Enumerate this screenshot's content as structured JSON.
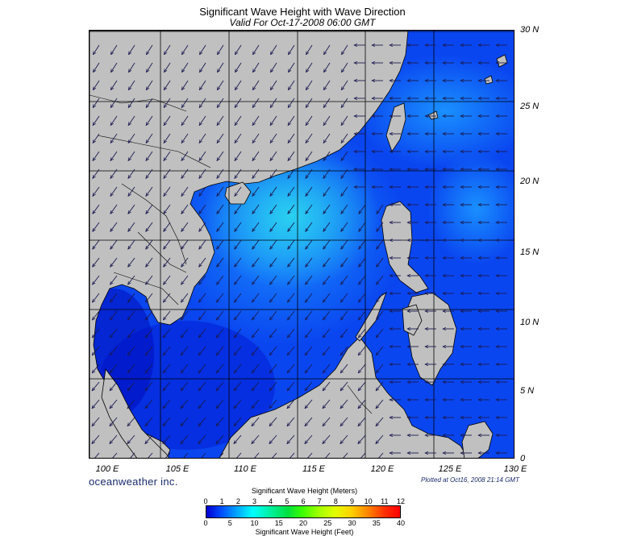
{
  "header": {
    "title": "Significant Wave Height with Wave Direction",
    "subtitle": "Valid For Oct-17-2008 06:00 GMT"
  },
  "map": {
    "lat_labels": [
      "30 N",
      "25 N",
      "20 N",
      "15 N",
      "10 N",
      "5 N",
      "0"
    ],
    "lon_labels": [
      "100 E",
      "105 E",
      "110 E",
      "115 E",
      "120 E",
      "125 E",
      "130 E"
    ],
    "colors": {
      "land": "#c0c0c0",
      "sea_low": "#0032ff",
      "sea_mid": "#0a6aff",
      "sea_high": "#1ab8f0"
    }
  },
  "footer": {
    "brand": "oceanweather inc.",
    "plotted": "Plotted at Oct16, 2008 21:14 GMT"
  },
  "colorbar": {
    "meters_title": "Significant Wave Height (Meters)",
    "meters_ticks": [
      "0",
      "1",
      "2",
      "3",
      "4",
      "5",
      "6",
      "7",
      "8",
      "9",
      "10",
      "11",
      "12"
    ],
    "feet_title": "Significant Wave Height (Feet)",
    "feet_ticks": [
      "0",
      "5",
      "10",
      "15",
      "20",
      "25",
      "30",
      "35",
      "40"
    ]
  }
}
